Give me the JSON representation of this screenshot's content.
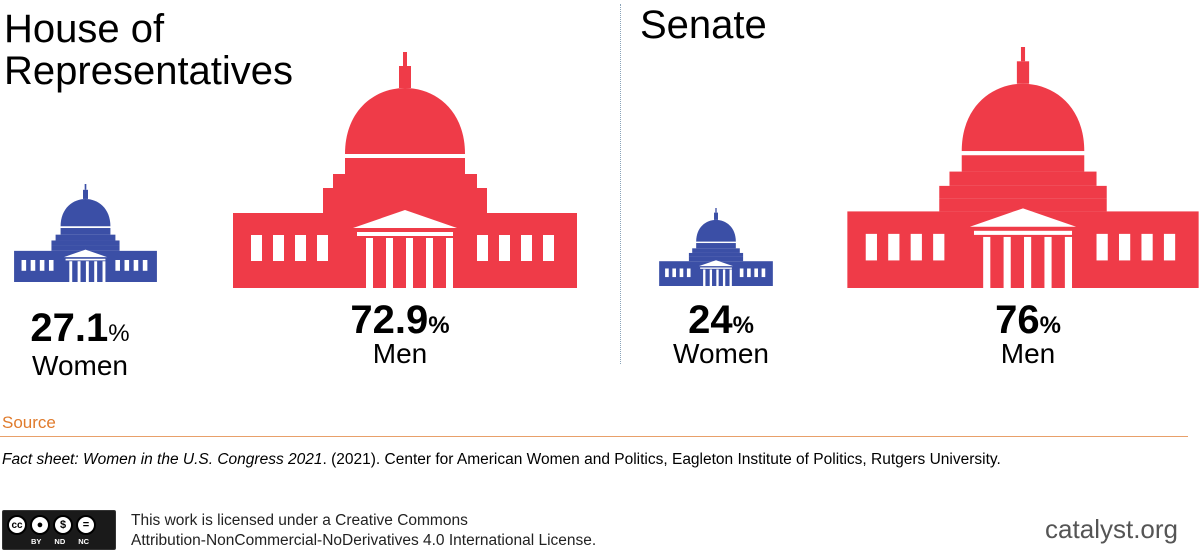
{
  "colors": {
    "women": "#3b4fa6",
    "men": "#ef3b48",
    "source": "#e07b2c"
  },
  "chart_data": [
    {
      "type": "pictograph",
      "title": "House of Representatives",
      "categories": [
        "Women",
        "Men"
      ],
      "values": [
        27.1,
        72.9
      ],
      "unit": "%",
      "value_labels": [
        "27.1",
        "72.9"
      ]
    },
    {
      "type": "pictograph",
      "title": "Senate",
      "categories": [
        "Women",
        "Men"
      ],
      "values": [
        24,
        76
      ],
      "unit": "%",
      "value_labels": [
        "24",
        "76"
      ]
    }
  ],
  "source": {
    "label": "Source",
    "title_italic": "Fact sheet: Women in the U.S. Congress 2021",
    "rest": ". (2021). Center for American Women and Politics, Eagleton Institute of Politics, Rutgers University."
  },
  "license": {
    "line1": "This work is licensed under a Creative Commons",
    "line2": "Attribution-NonCommercial-NoDerivatives 4.0 International License.",
    "badge": [
      "BY",
      "ND",
      "NC"
    ],
    "badge_cc": "cc"
  },
  "brand": "catalyst.org"
}
